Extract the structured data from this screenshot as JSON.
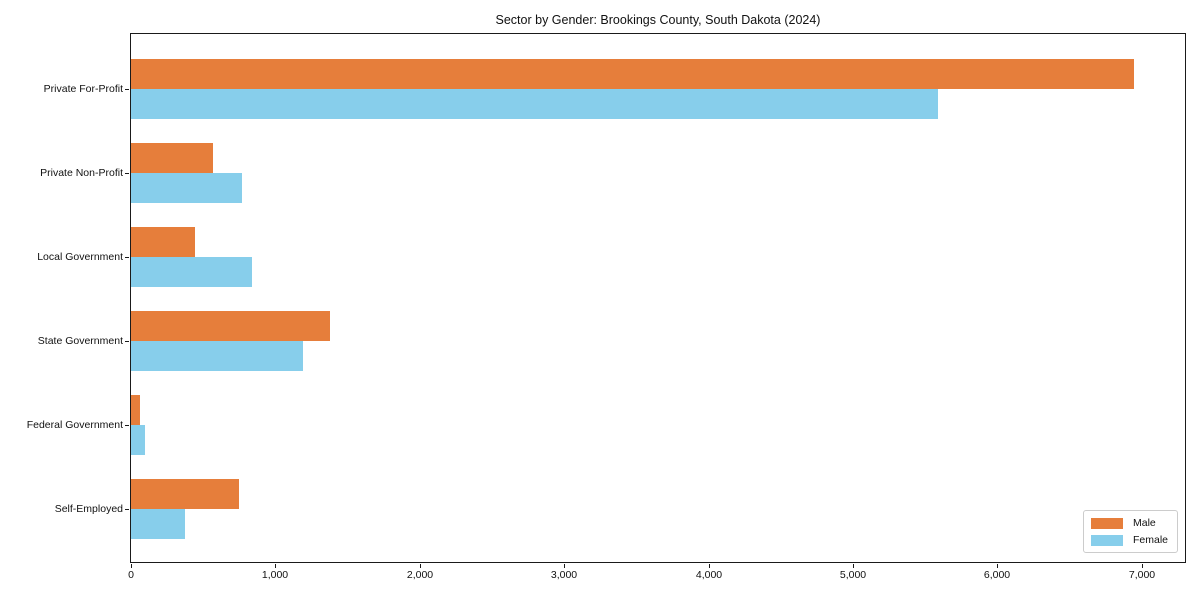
{
  "chart_data": {
    "type": "bar",
    "orientation": "horizontal",
    "title": "Sector by Gender: Brookings County, South Dakota (2024)",
    "categories": [
      "Private For-Profit",
      "Private Non-Profit",
      "Local Government",
      "State Government",
      "Federal Government",
      "Self-Employed"
    ],
    "series": [
      {
        "name": "Male",
        "color": "#E67E3B",
        "values": [
          6950,
          565,
          445,
          1375,
          65,
          745
        ]
      },
      {
        "name": "Female",
        "color": "#87CEEB",
        "values": [
          5590,
          770,
          840,
          1190,
          95,
          375
        ]
      }
    ],
    "xlabel": "",
    "ylabel": "",
    "xlim": [
      0,
      7300
    ],
    "x_tick_values": [
      0,
      1000,
      2000,
      3000,
      4000,
      5000,
      6000,
      7000
    ],
    "x_tick_labels": [
      "0",
      "1,000",
      "2,000",
      "3,000",
      "4,000",
      "5,000",
      "6,000",
      "7,000"
    ],
    "grid": false,
    "legend_position": "lower right"
  }
}
